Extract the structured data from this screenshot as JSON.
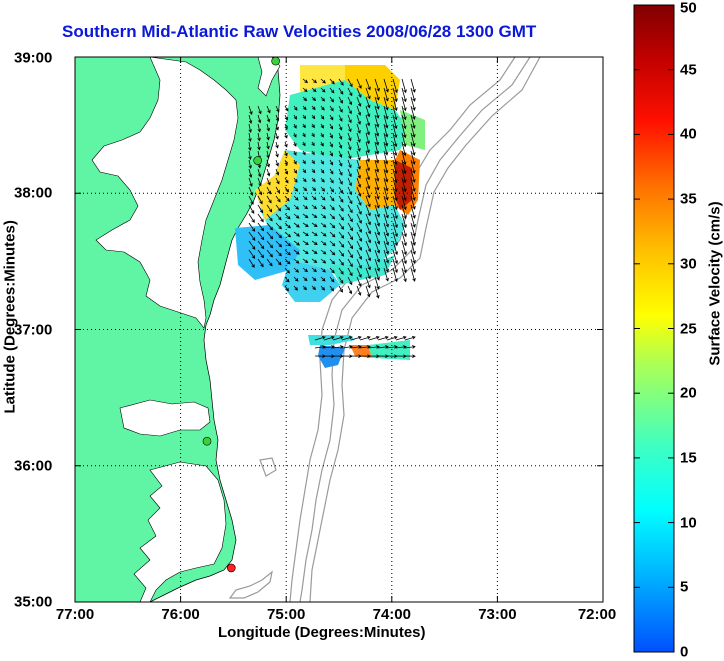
{
  "title": "Southern Mid-Atlantic Raw Velocities 2008/06/28 1300 GMT",
  "x_axis": {
    "label": "Longitude (Degrees:Minutes)",
    "ticks": [
      "77:00",
      "76:00",
      "75:00",
      "74:00",
      "73:00",
      "72:00"
    ]
  },
  "y_axis": {
    "label": "Latitude (Degrees:Minutes)",
    "ticks": [
      "39:00",
      "38:00",
      "37:00",
      "36:00",
      "35:00"
    ]
  },
  "colorbar": {
    "label": "Surface Velocity (cm/s)",
    "ticks": [
      "0",
      "5",
      "10",
      "15",
      "20",
      "25",
      "30",
      "35",
      "40",
      "45",
      "50"
    ],
    "min": 0,
    "max": 50
  },
  "colors": {
    "land": "#5ff5a5",
    "water": "#ffffff",
    "title": "#0a18d8",
    "bathymetry": "#9a9a9a",
    "station_green": "#3ad23a",
    "station_red": "#ff2020"
  },
  "map_extent": {
    "lon_west": 77,
    "lon_east": 72,
    "lat_south": 35,
    "lat_north": 39
  },
  "stations": [
    {
      "lat": 38.97,
      "lon": 75.1,
      "status": "green"
    },
    {
      "lat": 38.24,
      "lon": 75.27,
      "status": "green"
    },
    {
      "lat": 36.18,
      "lon": 75.75,
      "status": "green"
    },
    {
      "lat": 35.25,
      "lon": 75.52,
      "status": "red"
    }
  ]
}
